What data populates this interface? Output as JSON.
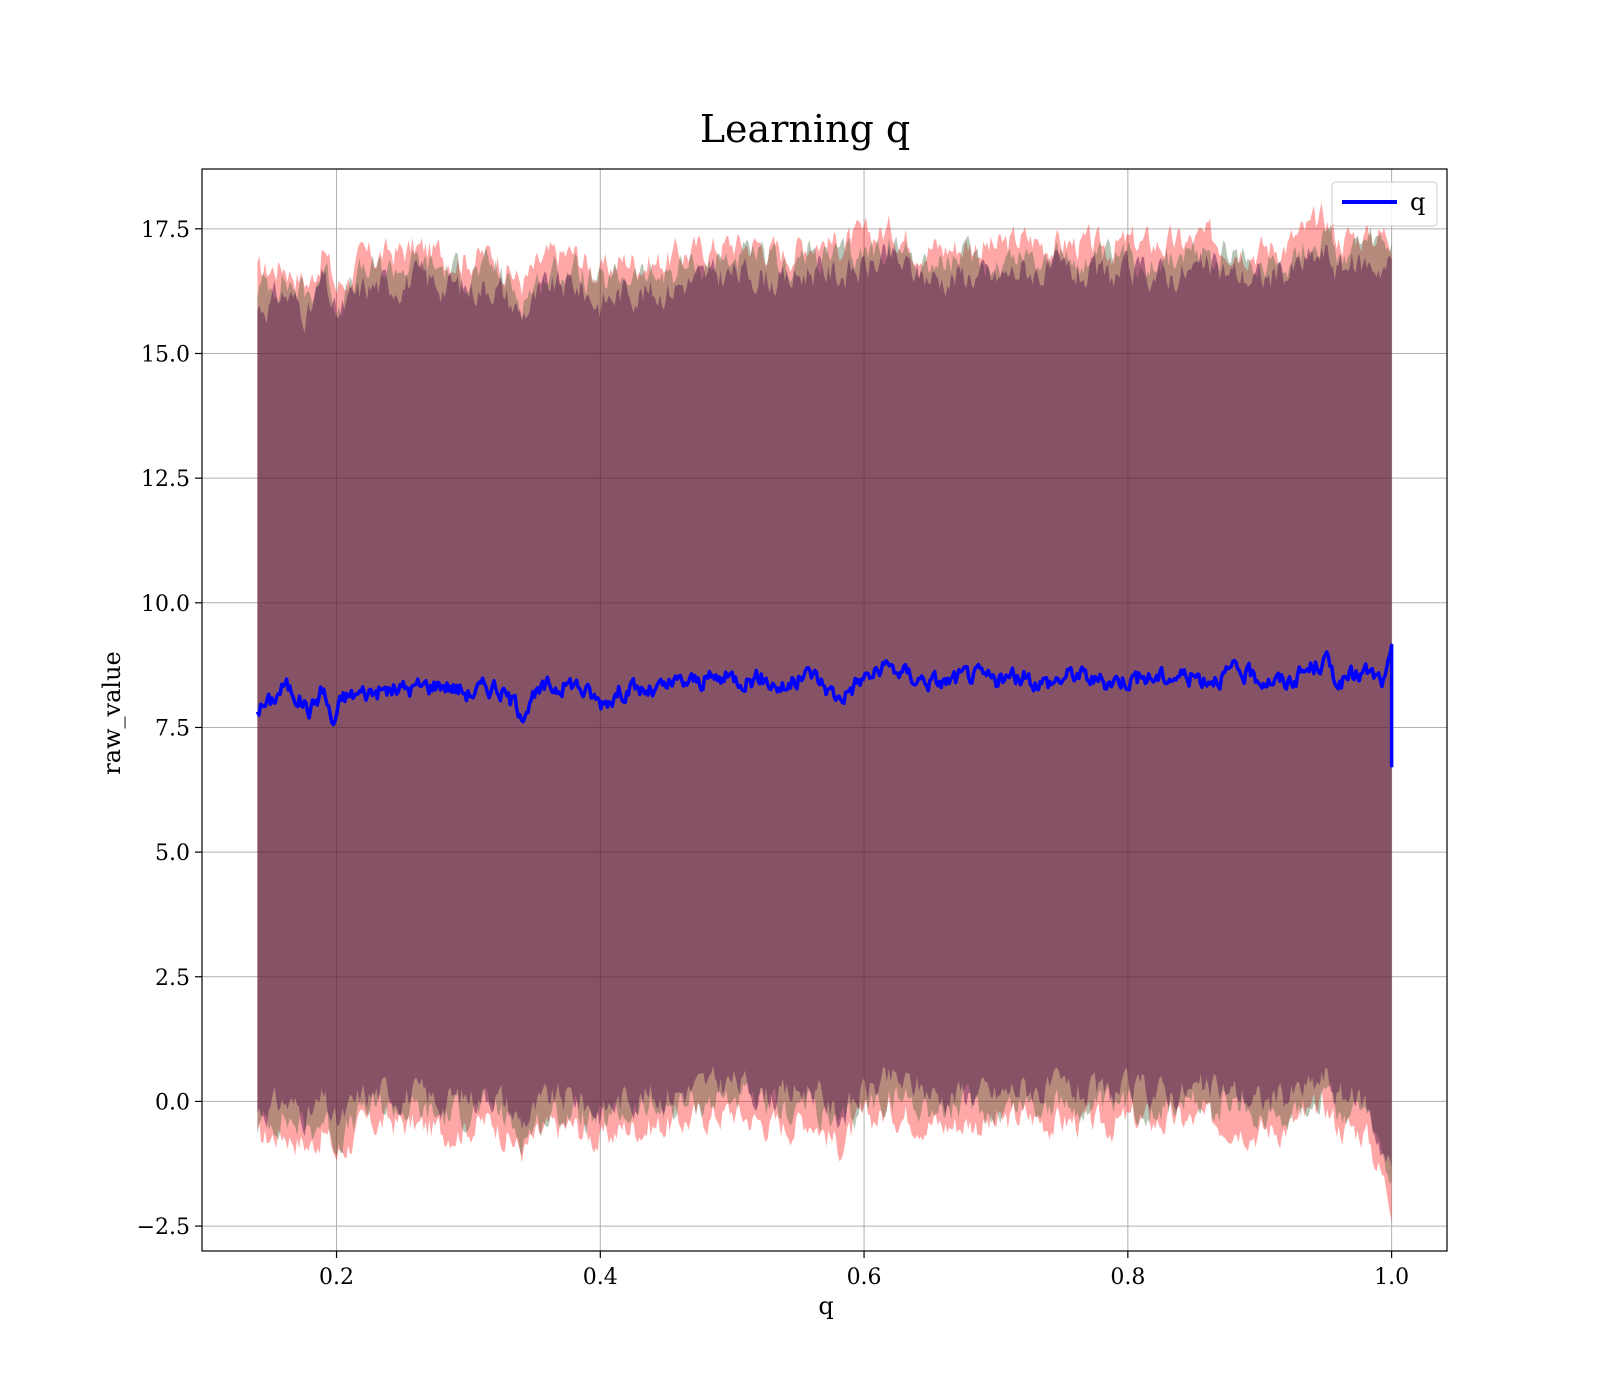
{
  "chart_data": {
    "type": "line",
    "title": "Learning q",
    "xlabel": "q",
    "ylabel": "raw_value",
    "xlim": [
      0.098,
      1.042
    ],
    "ylim": [
      -3.0,
      18.7
    ],
    "xticks": [
      0.2,
      0.4,
      0.6,
      0.8,
      1.0
    ],
    "xtick_labels": [
      "0.2",
      "0.4",
      "0.6",
      "0.8",
      "1.0"
    ],
    "yticks": [
      -2.5,
      0.0,
      2.5,
      5.0,
      7.5,
      10.0,
      12.5,
      15.0,
      17.5
    ],
    "ytick_labels": [
      "−2.5",
      "0.0",
      "2.5",
      "5.0",
      "7.5",
      "10.0",
      "12.5",
      "15.0",
      "17.5"
    ],
    "grid": true,
    "legend_position": "top-right",
    "series": [
      {
        "name": "q",
        "color": "#0000ff",
        "x": [
          0.14,
          0.15,
          0.16,
          0.17,
          0.18,
          0.19,
          0.197,
          0.205,
          0.22,
          0.24,
          0.26,
          0.28,
          0.3,
          0.32,
          0.34,
          0.36,
          0.38,
          0.4,
          0.42,
          0.44,
          0.46,
          0.48,
          0.5,
          0.52,
          0.54,
          0.56,
          0.58,
          0.6,
          0.62,
          0.64,
          0.66,
          0.68,
          0.7,
          0.72,
          0.74,
          0.76,
          0.78,
          0.8,
          0.82,
          0.84,
          0.86,
          0.88,
          0.9,
          0.92,
          0.94,
          0.95,
          0.96,
          0.98,
          0.995,
          1.0,
          1.0
        ],
        "y": [
          7.9,
          8.0,
          8.35,
          8.15,
          7.85,
          8.3,
          7.55,
          8.1,
          8.2,
          8.25,
          8.3,
          8.4,
          8.2,
          8.35,
          7.85,
          8.3,
          8.4,
          8.0,
          8.3,
          8.2,
          8.4,
          8.45,
          8.5,
          8.5,
          8.3,
          8.6,
          8.1,
          8.5,
          8.7,
          8.5,
          8.4,
          8.55,
          8.45,
          8.5,
          8.4,
          8.6,
          8.4,
          8.5,
          8.5,
          8.55,
          8.5,
          8.6,
          8.5,
          8.4,
          8.7,
          8.85,
          8.4,
          8.6,
          8.4,
          8.9,
          6.7
        ]
      }
    ],
    "bands": [
      {
        "color": "#ff0000",
        "opacity": 0.35,
        "x": [
          0.14,
          0.16,
          0.18,
          0.19,
          0.2,
          0.22,
          0.24,
          0.26,
          0.28,
          0.3,
          0.32,
          0.34,
          0.36,
          0.38,
          0.4,
          0.42,
          0.44,
          0.46,
          0.48,
          0.5,
          0.52,
          0.54,
          0.56,
          0.58,
          0.6,
          0.62,
          0.64,
          0.66,
          0.68,
          0.7,
          0.72,
          0.74,
          0.76,
          0.78,
          0.8,
          0.82,
          0.84,
          0.86,
          0.88,
          0.9,
          0.92,
          0.94,
          0.95,
          0.96,
          0.98,
          1.0
        ],
        "upper": [
          16.6,
          16.8,
          16.4,
          17.1,
          16.3,
          16.9,
          17.0,
          17.1,
          17.0,
          16.9,
          17.0,
          16.4,
          16.9,
          17.0,
          16.6,
          16.9,
          16.8,
          17.0,
          17.1,
          17.2,
          17.2,
          17.0,
          17.3,
          17.2,
          17.3,
          17.5,
          17.2,
          17.1,
          17.2,
          17.1,
          17.3,
          17.2,
          17.2,
          17.1,
          17.2,
          17.2,
          17.2,
          17.3,
          17.2,
          17.1,
          17.2,
          17.5,
          17.7,
          17.3,
          17.4,
          17.4
        ],
        "lower": [
          -0.8,
          -0.6,
          -0.9,
          -0.6,
          -1.1,
          -0.5,
          -0.4,
          -0.5,
          -0.6,
          -0.5,
          -0.4,
          -1.0,
          -0.6,
          -0.5,
          -0.8,
          -0.5,
          -0.5,
          -0.4,
          -0.3,
          -0.2,
          -0.4,
          -0.5,
          -0.3,
          -0.9,
          -0.4,
          -0.2,
          -0.3,
          -0.5,
          -0.4,
          -0.5,
          -0.3,
          -0.4,
          -0.4,
          -0.5,
          -0.4,
          -0.4,
          -0.4,
          -0.4,
          -0.4,
          -0.6,
          -0.5,
          -0.3,
          -0.1,
          -0.5,
          -0.6,
          -2.0
        ]
      },
      {
        "color": "#2d5a2d",
        "opacity": 0.35,
        "x": [
          0.14,
          0.16,
          0.18,
          0.19,
          0.2,
          0.22,
          0.24,
          0.26,
          0.28,
          0.3,
          0.32,
          0.34,
          0.36,
          0.38,
          0.4,
          0.42,
          0.44,
          0.46,
          0.48,
          0.5,
          0.52,
          0.54,
          0.56,
          0.58,
          0.6,
          0.62,
          0.64,
          0.66,
          0.68,
          0.7,
          0.72,
          0.74,
          0.76,
          0.78,
          0.8,
          0.82,
          0.84,
          0.86,
          0.88,
          0.9,
          0.92,
          0.94,
          0.95,
          0.96,
          0.98,
          1.0
        ],
        "upper": [
          16.3,
          16.5,
          16.1,
          16.8,
          16.0,
          16.6,
          16.7,
          16.8,
          16.7,
          16.6,
          16.7,
          16.1,
          16.6,
          16.7,
          16.3,
          16.6,
          16.5,
          16.7,
          16.8,
          16.9,
          16.9,
          16.7,
          17.0,
          16.9,
          17.0,
          17.2,
          16.9,
          16.8,
          16.9,
          16.8,
          17.0,
          16.9,
          16.9,
          16.8,
          16.9,
          16.9,
          16.9,
          17.0,
          16.9,
          16.8,
          16.9,
          17.2,
          17.4,
          17.0,
          17.1,
          17.1
        ],
        "lower": [
          -0.5,
          -0.3,
          -0.6,
          -0.3,
          -0.8,
          -0.2,
          -0.1,
          -0.2,
          -0.3,
          -0.2,
          -0.1,
          -0.7,
          -0.3,
          -0.2,
          -0.5,
          -0.2,
          -0.2,
          -0.1,
          0.0,
          0.1,
          -0.1,
          -0.2,
          0.0,
          -0.6,
          -0.1,
          0.1,
          0.0,
          -0.2,
          -0.1,
          -0.2,
          0.0,
          -0.1,
          -0.1,
          -0.2,
          -0.1,
          -0.1,
          -0.1,
          -0.1,
          -0.1,
          -0.3,
          -0.2,
          0.0,
          0.2,
          -0.2,
          -0.3,
          -1.7
        ]
      },
      {
        "color": "#4b0d4b",
        "opacity": 0.45,
        "x": [
          0.14,
          0.16,
          0.18,
          0.19,
          0.2,
          0.22,
          0.24,
          0.26,
          0.28,
          0.3,
          0.32,
          0.34,
          0.36,
          0.38,
          0.4,
          0.42,
          0.44,
          0.46,
          0.48,
          0.5,
          0.52,
          0.54,
          0.56,
          0.58,
          0.6,
          0.62,
          0.64,
          0.66,
          0.68,
          0.7,
          0.72,
          0.74,
          0.76,
          0.78,
          0.8,
          0.82,
          0.84,
          0.86,
          0.88,
          0.9,
          0.92,
          0.94,
          0.95,
          0.96,
          0.98,
          1.0
        ],
        "upper": [
          15.9,
          16.2,
          15.8,
          16.5,
          15.7,
          16.3,
          16.4,
          16.5,
          16.4,
          16.3,
          16.4,
          15.8,
          16.3,
          16.4,
          16.0,
          16.3,
          16.2,
          16.4,
          16.5,
          16.6,
          16.6,
          16.4,
          16.7,
          16.6,
          16.7,
          16.9,
          16.6,
          16.5,
          16.6,
          16.5,
          16.7,
          16.6,
          16.6,
          16.5,
          16.6,
          16.6,
          16.6,
          16.7,
          16.6,
          16.5,
          16.6,
          16.9,
          17.0,
          16.7,
          16.8,
          16.8
        ],
        "lower": [
          -0.2,
          0.0,
          -0.3,
          0.0,
          -0.5,
          0.1,
          0.2,
          0.1,
          0.0,
          0.1,
          0.2,
          -0.4,
          0.0,
          0.1,
          -0.2,
          0.1,
          0.1,
          0.2,
          0.3,
          0.4,
          0.2,
          0.1,
          0.3,
          -0.3,
          0.2,
          0.4,
          0.3,
          0.1,
          0.2,
          0.1,
          0.3,
          0.2,
          0.2,
          0.1,
          0.2,
          0.2,
          0.2,
          0.2,
          0.2,
          0.0,
          0.1,
          0.3,
          0.5,
          0.1,
          0.0,
          -1.4
        ]
      }
    ]
  }
}
